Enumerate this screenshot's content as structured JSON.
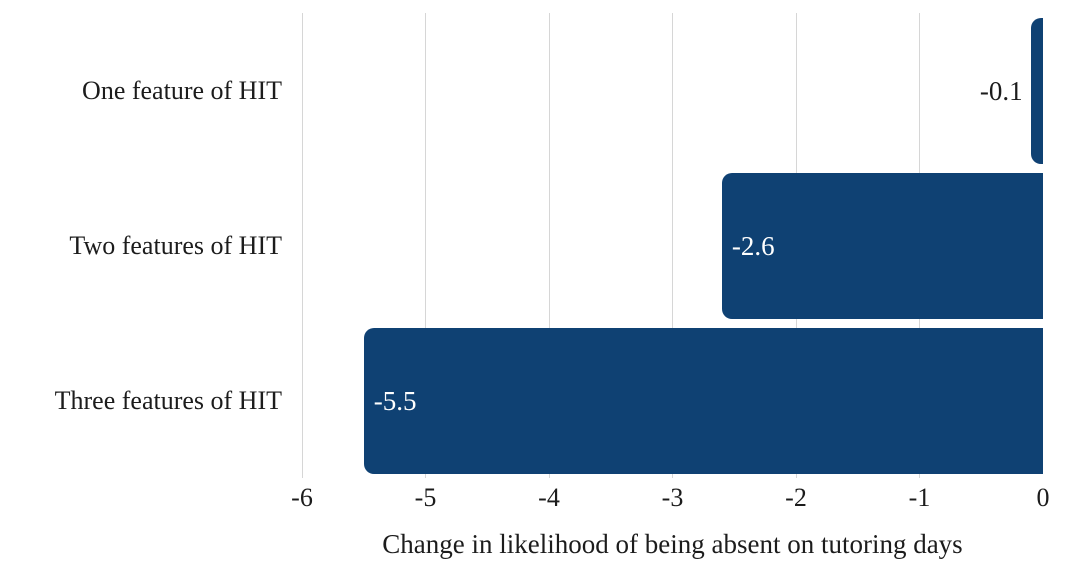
{
  "chart_data": {
    "type": "bar",
    "orientation": "horizontal",
    "title": "",
    "xlabel": "Change in likelihood of being absent on tutoring days",
    "ylabel": "",
    "categories": [
      "One feature of HIT",
      "Two features of HIT",
      "Three features of HIT"
    ],
    "values": [
      -0.1,
      -2.6,
      -5.5
    ],
    "data_labels": [
      "-0.1",
      "-2.6",
      "-5.5"
    ],
    "data_label_positions": [
      "outside-end",
      "inside-end",
      "inside-end"
    ],
    "xlim": [
      -6,
      0
    ],
    "xtick_labels": [
      "-6",
      "-5",
      "-4",
      "-3",
      "-2",
      "-1",
      "0"
    ],
    "xtick_values": [
      -6,
      -5,
      -4,
      -3,
      -2,
      -1,
      0
    ],
    "gridlines_at": [
      -6,
      -5,
      -4,
      -3,
      -2,
      -1
    ],
    "grid": "vertical-major",
    "legend": "none",
    "colors": {
      "bar": "#0f4173",
      "gridline": "#d6d6d6",
      "text": "#1c1c1c",
      "data_label_inside": "#ffffff",
      "data_label_outside": "#1c1c1c",
      "background": "#ffffff"
    }
  }
}
